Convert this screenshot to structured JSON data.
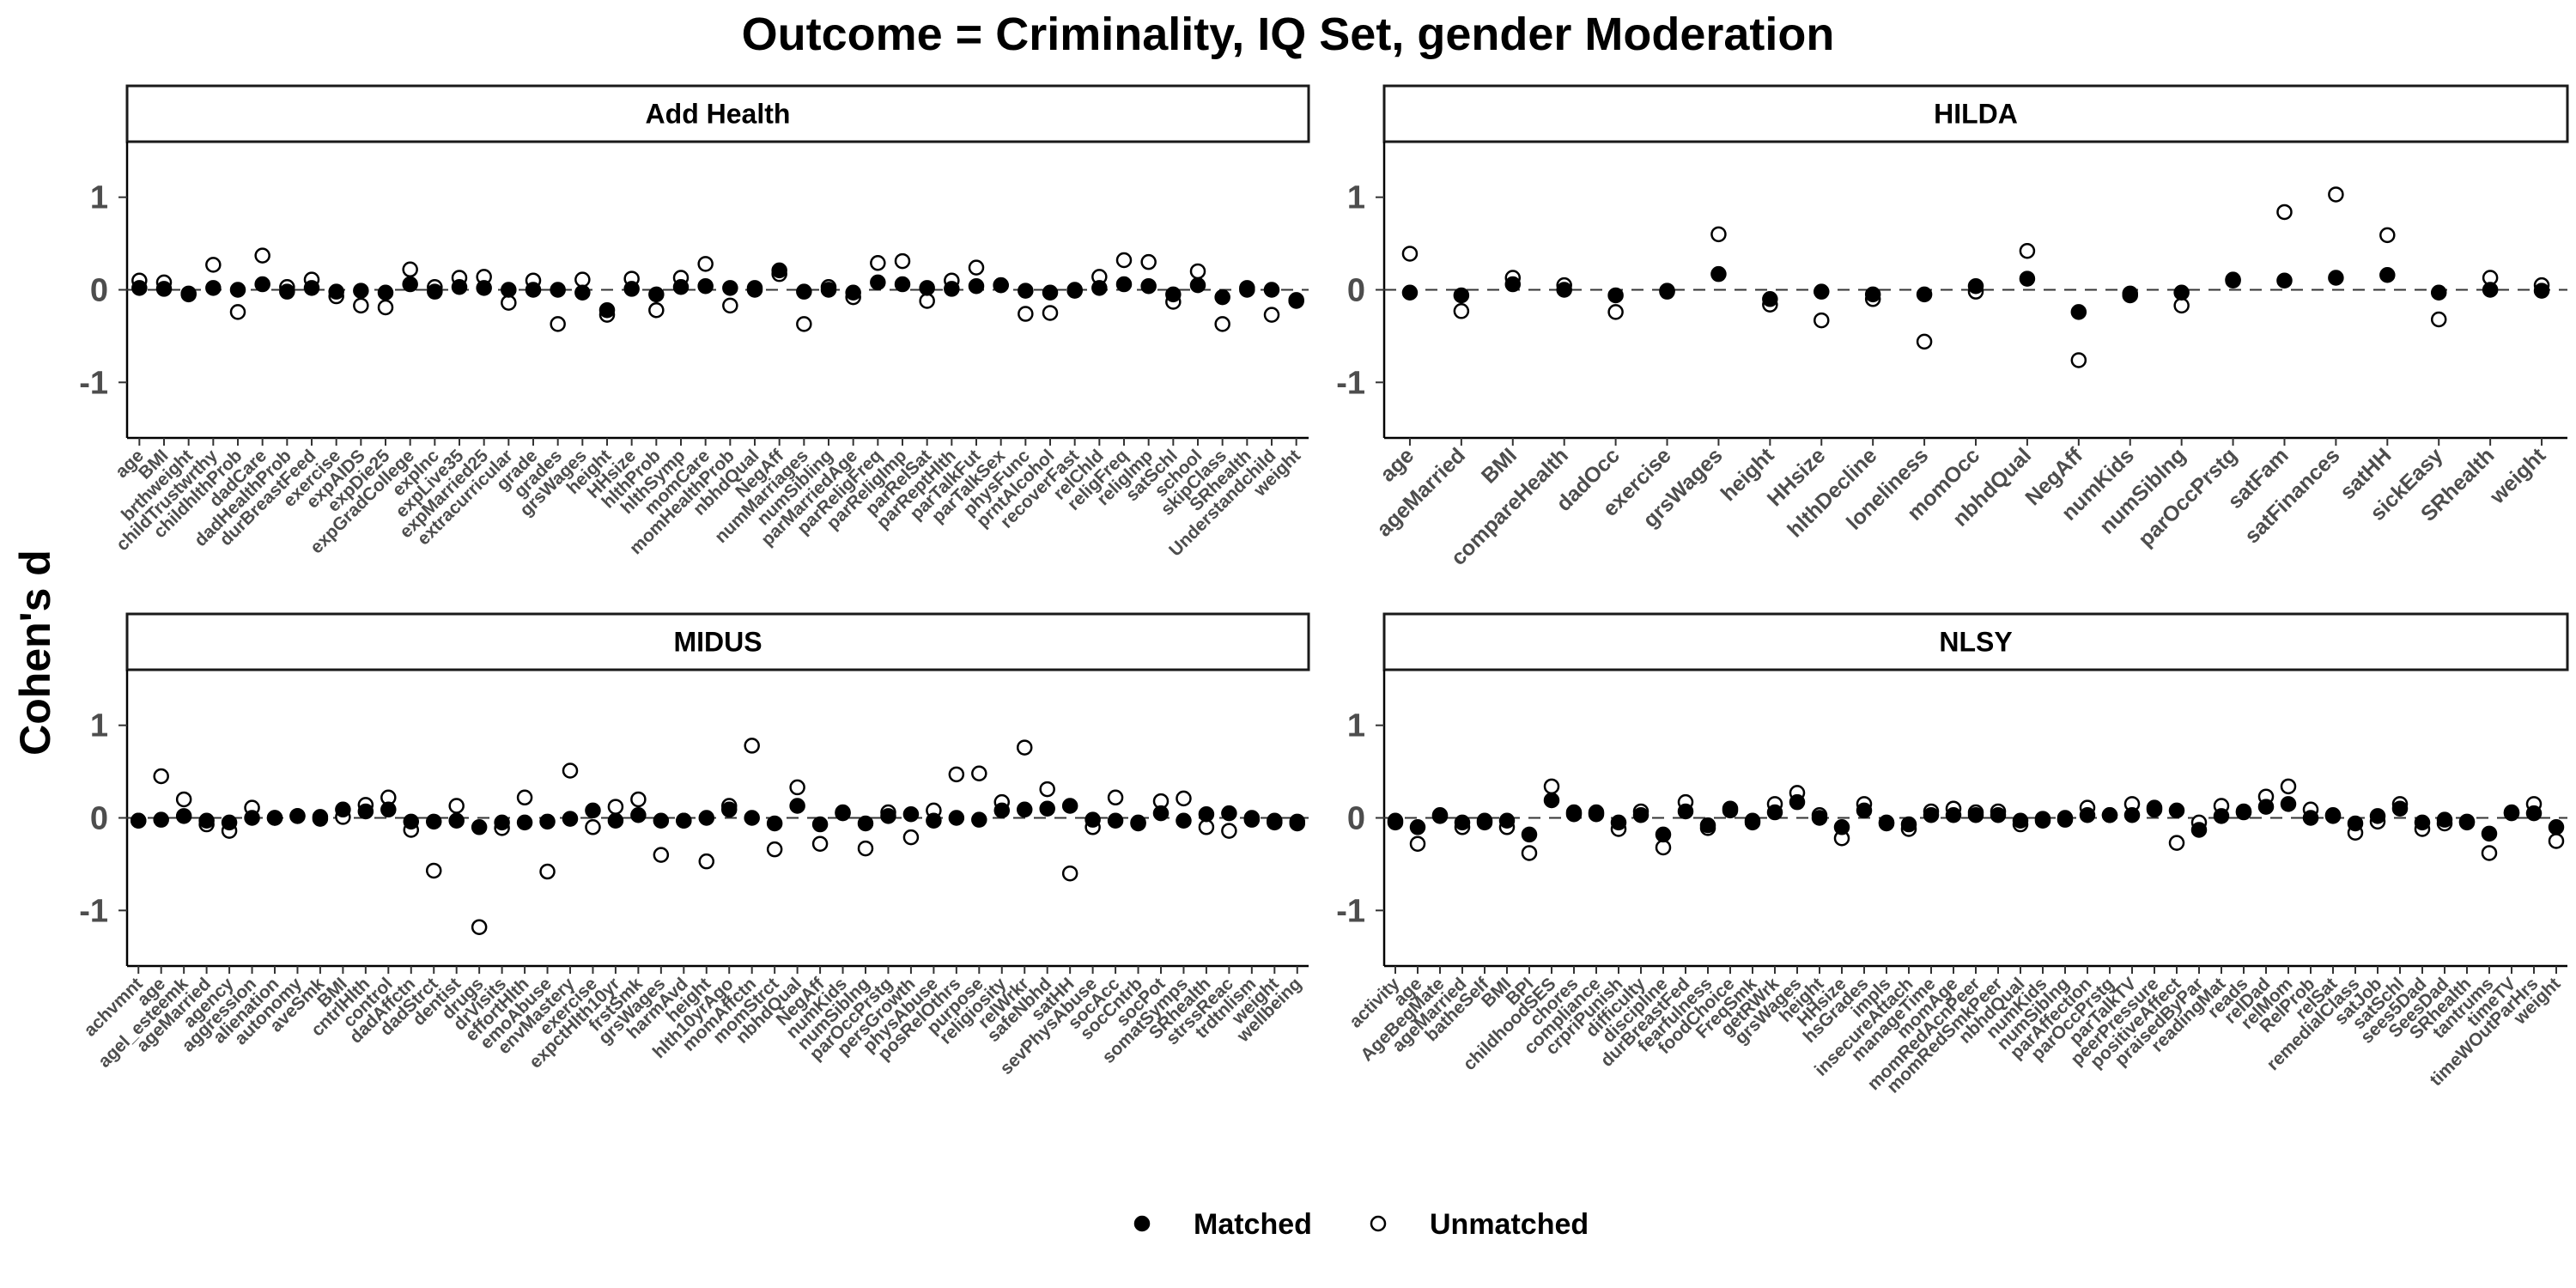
{
  "title": "Outcome = Criminality, IQ Set, gender Moderation",
  "ylabel": "Cohen's d",
  "legend": {
    "matched_label": "Matched",
    "unmatched_label": "Unmatched"
  },
  "colors": {
    "matched_fill": "#000000",
    "unmatched_fill": "#ffffff",
    "point_stroke": "#000000",
    "zero_line": "#333333",
    "strip_bg": "#ffffff"
  },
  "chart_data": [
    {
      "type": "scatter",
      "panel": "Add Health",
      "ylim": [
        -1.6,
        1.6
      ],
      "yticks": [
        -1,
        0,
        1
      ],
      "categories": [
        "age",
        "BMI",
        "brthweight",
        "childTrustwrthy",
        "childhlthProb",
        "dadCare",
        "dadHealthProb",
        "durBreastFeed",
        "exercise",
        "expAIDS",
        "expDie25",
        "expGradCollege",
        "expInc",
        "expLive35",
        "expMarried25",
        "extracurricular",
        "grade",
        "grades",
        "grsWages",
        "height",
        "HHsize",
        "hlthProb",
        "hlthSymp",
        "momCare",
        "momHealthProb",
        "nbhdQual",
        "NegAff",
        "numMarriages",
        "numSibling",
        "parMarriedAge",
        "parReligFreq",
        "parReligImp",
        "parRelSat",
        "parReptHlth",
        "parTalkFut",
        "parTalkSex",
        "physFunc",
        "prntAlcohol",
        "recoverFast",
        "relChld",
        "religFreq",
        "religImp",
        "satSchl",
        "school",
        "skipClass",
        "SRhealth",
        "Understandchild",
        "weight"
      ],
      "series": [
        {
          "name": "Matched",
          "values": [
            0.02,
            0.01,
            -0.04,
            0.02,
            0.0,
            0.06,
            -0.02,
            0.02,
            -0.02,
            -0.01,
            -0.03,
            0.06,
            -0.02,
            0.03,
            0.02,
            0.0,
            0.0,
            0.0,
            -0.03,
            -0.22,
            0.01,
            -0.05,
            0.03,
            0.04,
            0.02,
            0.02,
            0.21,
            -0.02,
            0.0,
            -0.03,
            0.08,
            0.06,
            0.02,
            0.01,
            0.04,
            0.05,
            -0.01,
            -0.03,
            0.0,
            0.02,
            0.06,
            0.04,
            -0.05,
            0.05,
            -0.08,
            0.02,
            0.0,
            -0.11
          ]
        },
        {
          "name": "Unmatched",
          "values": [
            0.1,
            0.08,
            -0.05,
            0.27,
            -0.24,
            0.37,
            0.03,
            0.11,
            -0.07,
            -0.17,
            -0.19,
            0.22,
            0.03,
            0.13,
            0.14,
            -0.14,
            0.1,
            -0.37,
            0.11,
            -0.27,
            0.12,
            -0.22,
            0.13,
            0.28,
            -0.17,
            0.0,
            0.17,
            -0.37,
            0.03,
            -0.08,
            0.29,
            0.31,
            -0.12,
            0.1,
            0.24,
            0.05,
            -0.26,
            -0.25,
            -0.01,
            0.14,
            0.32,
            0.3,
            -0.13,
            0.2,
            -0.37,
            0.0,
            -0.27,
            -0.12
          ]
        }
      ]
    },
    {
      "type": "scatter",
      "panel": "HILDA",
      "ylim": [
        -1.6,
        1.6
      ],
      "yticks": [
        -1,
        0,
        1
      ],
      "categories": [
        "age",
        "ageMarried",
        "BMI",
        "compareHealth",
        "dadOcc",
        "exercise",
        "grsWages",
        "height",
        "HHsize",
        "hlthDecline",
        "loneliness",
        "momOcc",
        "nbhdQual",
        "NegAff",
        "numKids",
        "numSiblng",
        "parOccPrstg",
        "satFam",
        "satFinances",
        "satHH",
        "sickEasy",
        "SRhealth",
        "weight"
      ],
      "series": [
        {
          "name": "Matched",
          "values": [
            -0.03,
            -0.06,
            0.06,
            0.0,
            -0.06,
            -0.02,
            0.17,
            -0.1,
            -0.02,
            -0.05,
            -0.05,
            0.04,
            0.12,
            -0.24,
            -0.06,
            -0.03,
            0.11,
            0.1,
            0.13,
            0.16,
            -0.03,
            0.0,
            -0.01
          ]
        },
        {
          "name": "Unmatched",
          "values": [
            0.39,
            -0.23,
            0.13,
            0.05,
            -0.24,
            -0.01,
            0.6,
            -0.16,
            -0.33,
            -0.1,
            -0.56,
            -0.02,
            0.42,
            -0.76,
            -0.04,
            -0.17,
            0.1,
            0.84,
            1.03,
            0.59,
            -0.32,
            0.13,
            0.05
          ]
        }
      ]
    },
    {
      "type": "scatter",
      "panel": "MIDUS",
      "ylim": [
        -1.6,
        1.6
      ],
      "yticks": [
        -1,
        0,
        1
      ],
      "categories": [
        "achvmnt",
        "age",
        "agel_esteemk",
        "ageMarried",
        "agency",
        "aggression",
        "alienation",
        "autonomy",
        "aveSmk",
        "BMI",
        "cntrlHlth",
        "control",
        "dadAffctn",
        "dadStrct",
        "dentist",
        "drugs",
        "drVisits",
        "effortHlth",
        "emoAbuse",
        "envMastery",
        "exercise",
        "expctHlth10yr",
        "frstSmk",
        "grsWages",
        "harmAvd",
        "height",
        "hlth10yrAgo",
        "momAffctn",
        "momStrct",
        "nbhdQual",
        "NegAff",
        "numKids",
        "numSiblng",
        "parOccPrstg",
        "persGrowth",
        "physAbuse",
        "posRelOthrs",
        "purpose",
        "religiosity",
        "relWrkr",
        "safeNbhd",
        "satHH",
        "sevPhysAbuse",
        "socAcc",
        "socCntrb",
        "socPot",
        "somatSymps",
        "SRhealth",
        "strssReac",
        "trdtnlism",
        "weight",
        "wellbeing"
      ],
      "series": [
        {
          "name": "Matched",
          "values": [
            -0.03,
            -0.02,
            0.02,
            -0.03,
            -0.05,
            0.0,
            0.0,
            0.02,
            -0.01,
            0.09,
            0.07,
            0.09,
            -0.04,
            -0.04,
            -0.03,
            -0.1,
            -0.05,
            -0.05,
            -0.04,
            -0.01,
            0.08,
            -0.03,
            0.03,
            -0.03,
            -0.03,
            0.0,
            0.09,
            0.0,
            -0.06,
            0.13,
            -0.07,
            0.06,
            -0.06,
            0.02,
            0.04,
            -0.03,
            0.0,
            -0.02,
            0.08,
            0.09,
            0.1,
            0.13,
            -0.02,
            -0.03,
            -0.06,
            0.05,
            -0.03,
            0.04,
            0.05,
            -0.02,
            -0.03,
            -0.04
          ]
        },
        {
          "name": "Unmatched",
          "values": [
            -0.03,
            0.45,
            0.2,
            -0.07,
            -0.14,
            0.11,
            0.0,
            0.02,
            0.01,
            0.01,
            0.14,
            0.22,
            -0.13,
            -0.57,
            0.13,
            -1.18,
            -0.11,
            0.22,
            -0.58,
            0.51,
            -0.1,
            0.12,
            0.2,
            -0.4,
            -0.03,
            -0.47,
            0.13,
            0.78,
            -0.34,
            0.33,
            -0.28,
            0.05,
            -0.33,
            0.06,
            -0.21,
            0.08,
            0.47,
            0.48,
            0.17,
            0.76,
            0.31,
            -0.6,
            -0.1,
            0.22,
            -0.05,
            0.18,
            0.21,
            -0.1,
            -0.14,
            0.0,
            -0.05,
            -0.06
          ]
        }
      ]
    },
    {
      "type": "scatter",
      "panel": "NLSY",
      "ylim": [
        -1.6,
        1.6
      ],
      "yticks": [
        -1,
        0,
        1
      ],
      "categories": [
        "activity",
        "age",
        "AgeBegMate",
        "ageMarried",
        "batheSelf",
        "BMI",
        "BPI",
        "childhoodSES",
        "chores",
        "compliance",
        "crpriPunish",
        "difficulty",
        "discipline",
        "durBreastFed",
        "fearfulness",
        "foodChoice",
        "FreqSmk",
        "getRWrk",
        "grsWages",
        "height",
        "HHsize",
        "hsGrades",
        "impls",
        "insecureAttach",
        "manageTime",
        "momAge",
        "momRedAcnPeer",
        "momRedSmkPeer",
        "nbhdQual",
        "numKids",
        "numSiblng",
        "parAffection",
        "parOccPrstg",
        "parTalkTV",
        "peerPressure",
        "positiveAffect",
        "praisedByPar",
        "readingMat",
        "reads",
        "relDad",
        "relMom",
        "RelProb",
        "relSat",
        "remedialClass",
        "satJob",
        "satSchl",
        "sees5Dad",
        "SeesDad",
        "SRhealth",
        "tantrums",
        "timeTV",
        "timeWOutParHrs",
        "weight"
      ],
      "series": [
        {
          "name": "Matched",
          "values": [
            -0.05,
            -0.1,
            0.02,
            -0.05,
            -0.05,
            -0.03,
            -0.18,
            0.19,
            0.04,
            0.04,
            -0.05,
            0.03,
            -0.18,
            0.07,
            -0.08,
            0.08,
            -0.03,
            0.06,
            0.17,
            0.0,
            -0.1,
            0.08,
            -0.06,
            -0.07,
            0.03,
            0.03,
            0.03,
            0.03,
            -0.03,
            -0.01,
            -0.02,
            0.03,
            0.03,
            0.03,
            0.09,
            0.08,
            -0.13,
            0.02,
            0.07,
            0.12,
            0.15,
            0.0,
            0.02,
            -0.06,
            0.02,
            0.1,
            -0.05,
            -0.02,
            -0.05,
            -0.17,
            0.05,
            0.05,
            -0.1
          ]
        },
        {
          "name": "Unmatched",
          "values": [
            -0.03,
            -0.28,
            0.03,
            -0.1,
            -0.03,
            -0.1,
            -0.38,
            0.34,
            0.06,
            0.06,
            -0.12,
            0.07,
            -0.32,
            0.17,
            -0.11,
            0.1,
            -0.05,
            0.15,
            0.27,
            0.03,
            -0.22,
            0.15,
            -0.05,
            -0.12,
            0.07,
            0.1,
            0.06,
            0.07,
            -0.07,
            -0.03,
            0.0,
            0.11,
            0.03,
            0.15,
            0.11,
            -0.27,
            -0.05,
            0.13,
            0.06,
            0.23,
            0.34,
            0.09,
            0.03,
            -0.16,
            -0.04,
            0.15,
            -0.12,
            -0.06,
            -0.04,
            -0.38,
            0.06,
            0.15,
            -0.25
          ]
        }
      ]
    }
  ]
}
